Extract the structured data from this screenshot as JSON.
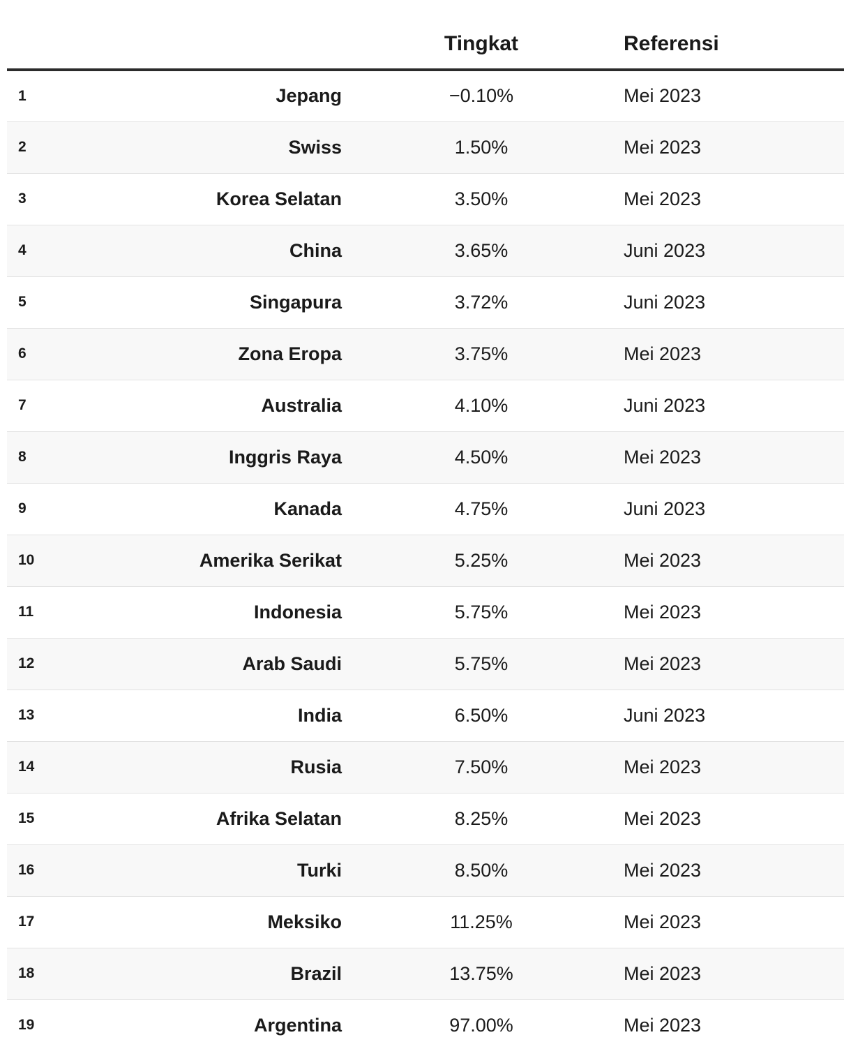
{
  "chart_data": {
    "type": "table",
    "columns": [
      "",
      "",
      "Tingkat",
      "Referensi"
    ],
    "rows": [
      {
        "rank": "1",
        "country": "Jepang",
        "rate": "−0.10%",
        "reference": "Mei 2023"
      },
      {
        "rank": "2",
        "country": "Swiss",
        "rate": "1.50%",
        "reference": "Mei 2023"
      },
      {
        "rank": "3",
        "country": "Korea Selatan",
        "rate": "3.50%",
        "reference": "Mei 2023"
      },
      {
        "rank": "4",
        "country": "China",
        "rate": "3.65%",
        "reference": "Juni 2023"
      },
      {
        "rank": "5",
        "country": "Singapura",
        "rate": "3.72%",
        "reference": "Juni 2023"
      },
      {
        "rank": "6",
        "country": "Zona Eropa",
        "rate": "3.75%",
        "reference": "Mei 2023"
      },
      {
        "rank": "7",
        "country": "Australia",
        "rate": "4.10%",
        "reference": "Juni 2023"
      },
      {
        "rank": "8",
        "country": "Inggris Raya",
        "rate": "4.50%",
        "reference": "Mei 2023"
      },
      {
        "rank": "9",
        "country": "Kanada",
        "rate": "4.75%",
        "reference": "Juni 2023"
      },
      {
        "rank": "10",
        "country": "Amerika Serikat",
        "rate": "5.25%",
        "reference": "Mei 2023"
      },
      {
        "rank": "11",
        "country": "Indonesia",
        "rate": "5.75%",
        "reference": "Mei 2023"
      },
      {
        "rank": "12",
        "country": "Arab Saudi",
        "rate": "5.75%",
        "reference": "Mei 2023"
      },
      {
        "rank": "13",
        "country": "India",
        "rate": "6.50%",
        "reference": "Juni 2023"
      },
      {
        "rank": "14",
        "country": "Rusia",
        "rate": "7.50%",
        "reference": "Mei 2023"
      },
      {
        "rank": "15",
        "country": "Afrika Selatan",
        "rate": "8.25%",
        "reference": "Mei 2023"
      },
      {
        "rank": "16",
        "country": "Turki",
        "rate": "8.50%",
        "reference": "Mei 2023"
      },
      {
        "rank": "17",
        "country": "Meksiko",
        "rate": "11.25%",
        "reference": "Mei 2023"
      },
      {
        "rank": "18",
        "country": "Brazil",
        "rate": "13.75%",
        "reference": "Mei 2023"
      },
      {
        "rank": "19",
        "country": "Argentina",
        "rate": "97.00%",
        "reference": "Mei 2023"
      }
    ]
  }
}
